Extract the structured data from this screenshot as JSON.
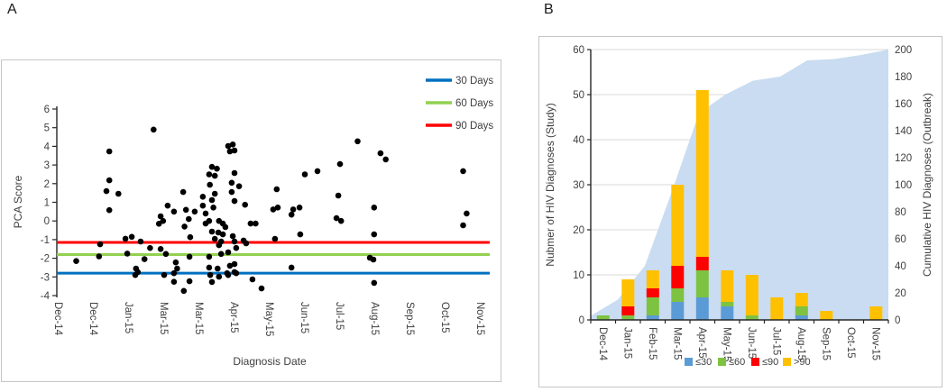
{
  "panels": {
    "a": {
      "letter": "A"
    },
    "b": {
      "letter": "B"
    }
  },
  "chart_data": [
    {
      "panel": "A",
      "type": "scatter",
      "xlabel": "Diagnosis Date",
      "ylabel": "PCA Score",
      "x_tick_labels": [
        "Dec-14",
        "Dec-14",
        "Jan-15",
        "Mar-15",
        "Mar-15",
        "Apr-15",
        "May-15",
        "Jun-15",
        "Jul-15",
        "Aug-15",
        "Sep-15",
        "Oct-15",
        "Nov-15"
      ],
      "y_ticks": [
        6,
        5,
        4,
        3,
        2,
        1,
        0,
        -1,
        -2,
        -3,
        -4
      ],
      "ylim": [
        -4,
        6
      ],
      "marker_color": "#000000",
      "grid": false,
      "legend_position": "top-right",
      "reference_lines": [
        {
          "label": "30 Days",
          "y": -2.8,
          "color": "#0070C0"
        },
        {
          "label": "60 Days",
          "y": -1.8,
          "color": "#92D050"
        },
        {
          "label": "90 Days",
          "y": -1.15,
          "color": "#FF0000"
        }
      ],
      "points": [
        [
          0.5,
          -2.15
        ],
        [
          1.15,
          -1.9
        ],
        [
          1.18,
          -1.25
        ],
        [
          1.36,
          1.6
        ],
        [
          1.44,
          3.73
        ],
        [
          1.44,
          2.18
        ],
        [
          1.7,
          1.46
        ],
        [
          1.44,
          0.58
        ],
        [
          1.9,
          -0.95
        ],
        [
          2.08,
          -0.85
        ],
        [
          2.33,
          -1.1
        ],
        [
          1.95,
          -1.75
        ],
        [
          2.44,
          -2.05
        ],
        [
          2.2,
          -2.55
        ],
        [
          2.25,
          -2.74
        ],
        [
          2.18,
          -2.9
        ],
        [
          2.7,
          4.9
        ],
        [
          2.85,
          -0.15
        ],
        [
          2.9,
          0.25
        ],
        [
          2.97,
          0.0
        ],
        [
          3.1,
          0.82
        ],
        [
          3.28,
          0.5
        ],
        [
          3.54,
          1.55
        ],
        [
          3.62,
          0.6
        ],
        [
          3.7,
          0.1
        ],
        [
          3.58,
          -0.3
        ],
        [
          2.6,
          -1.45
        ],
        [
          2.9,
          -1.5
        ],
        [
          3.05,
          -1.77
        ],
        [
          3.33,
          -2.22
        ],
        [
          3.37,
          -2.55
        ],
        [
          3.28,
          -2.8
        ],
        [
          3.28,
          -3.26
        ],
        [
          3.0,
          -2.9
        ],
        [
          3.56,
          -3.75
        ],
        [
          3.72,
          -3.23
        ],
        [
          3.74,
          -0.87
        ],
        [
          3.87,
          0.5
        ],
        [
          3.72,
          -1.92
        ],
        [
          4.1,
          1.3
        ],
        [
          4.1,
          0.82
        ],
        [
          4.18,
          0.4
        ],
        [
          4.36,
          1.12
        ],
        [
          4.4,
          0.72
        ],
        [
          4.36,
          2.9
        ],
        [
          4.5,
          2.8
        ],
        [
          4.28,
          2.5
        ],
        [
          4.44,
          2.42
        ],
        [
          4.3,
          1.94
        ],
        [
          4.44,
          1.46
        ],
        [
          4.56,
          0.0
        ],
        [
          4.67,
          -0.14
        ],
        [
          4.74,
          -0.33
        ],
        [
          4.28,
          0.0
        ],
        [
          4.18,
          -0.14
        ],
        [
          4.36,
          -0.57
        ],
        [
          4.54,
          -0.62
        ],
        [
          4.67,
          -0.72
        ],
        [
          4.44,
          -0.96
        ],
        [
          4.62,
          -1.1
        ],
        [
          4.95,
          -0.81
        ],
        [
          5.0,
          -1.1
        ],
        [
          4.82,
          4.02
        ],
        [
          4.95,
          4.1
        ],
        [
          4.87,
          3.73
        ],
        [
          5.0,
          3.78
        ],
        [
          4.92,
          2.05
        ],
        [
          5.0,
          2.57
        ],
        [
          5.13,
          1.86
        ],
        [
          5.0,
          1.07
        ],
        [
          5.3,
          0.87
        ],
        [
          4.92,
          1.55
        ],
        [
          5.46,
          -0.14
        ],
        [
          5.6,
          -0.14
        ],
        [
          5.26,
          -1.05
        ],
        [
          4.56,
          -1.3
        ],
        [
          5.05,
          -1.45
        ],
        [
          5.33,
          -1.2
        ],
        [
          4.62,
          -1.77
        ],
        [
          4.82,
          -1.68
        ],
        [
          4.28,
          -1.92
        ],
        [
          4.28,
          -2.5
        ],
        [
          4.87,
          -2.4
        ],
        [
          5.0,
          -2.74
        ],
        [
          4.82,
          -2.9
        ],
        [
          4.52,
          -2.55
        ],
        [
          4.36,
          -3.27
        ],
        [
          4.31,
          -2.9
        ],
        [
          4.79,
          -2.8
        ],
        [
          5.0,
          -2.31
        ],
        [
          5.05,
          -2.8
        ],
        [
          4.56,
          -2.99
        ],
        [
          5.51,
          -3.13
        ],
        [
          5.77,
          -3.62
        ],
        [
          6.15,
          -0.96
        ],
        [
          6.2,
          1.7
        ],
        [
          6.23,
          0.72
        ],
        [
          6.1,
          0.62
        ],
        [
          6.67,
          0.62
        ],
        [
          6.85,
          0.72
        ],
        [
          6.62,
          0.34
        ],
        [
          6.62,
          -2.5
        ],
        [
          6.87,
          -0.72
        ],
        [
          7.0,
          2.5
        ],
        [
          7.36,
          2.67
        ],
        [
          8.0,
          3.05
        ],
        [
          7.95,
          1.36
        ],
        [
          7.9,
          0.15
        ],
        [
          8.03,
          0.0
        ],
        [
          8.5,
          4.27
        ],
        [
          8.97,
          0.72
        ],
        [
          8.97,
          -0.72
        ],
        [
          9.15,
          3.63
        ],
        [
          9.3,
          3.3
        ],
        [
          8.85,
          -1.97
        ],
        [
          8.95,
          -2.07
        ],
        [
          8.97,
          -3.32
        ],
        [
          11.5,
          2.67
        ],
        [
          11.6,
          0.4
        ],
        [
          11.5,
          -0.23
        ]
      ]
    },
    {
      "panel": "B",
      "type": "bar-area-combo",
      "categories": [
        "Dec-14",
        "Jan-15",
        "Feb-15",
        "Mar-15",
        "Apr-15",
        "May-15",
        "Jun-15",
        "Jul-15",
        "Aug-15",
        "Sep-15",
        "Oct-15",
        "Nov-15"
      ],
      "ylabel_left": "Nubmer of HIV Diagnoses (Study)",
      "ylabel_right": "Cumulative HIV Diagnoses (Outbreak)",
      "ylim_left": [
        0,
        60
      ],
      "ylim_right": [
        0,
        200
      ],
      "y_ticks_left": [
        0,
        10,
        20,
        30,
        40,
        50,
        60
      ],
      "y_ticks_right": [
        0,
        20,
        40,
        60,
        80,
        100,
        120,
        140,
        160,
        180,
        200
      ],
      "grid": true,
      "legend_position": "bottom",
      "bar_series": [
        {
          "name": "≤30",
          "color": "#5B9BD5",
          "values": [
            0,
            0,
            1,
            4,
            5,
            3,
            0,
            0,
            1,
            0,
            0,
            0
          ]
        },
        {
          "name": "≤60",
          "color": "#7EC241",
          "values": [
            1,
            1,
            4,
            3,
            6,
            1,
            1,
            0,
            2,
            0,
            0,
            0
          ]
        },
        {
          "name": "≤90",
          "color": "#FF0000",
          "values": [
            0,
            2,
            2,
            5,
            3,
            0,
            0,
            0,
            0,
            0,
            0,
            0
          ]
        },
        {
          "name": ">90",
          "color": "#FFC000",
          "values": [
            0,
            6,
            4,
            18,
            37,
            7,
            9,
            5,
            3,
            2,
            0,
            3
          ]
        }
      ],
      "area_series": {
        "name": "Cumulative HIV Diagnoses (Outbreak)",
        "color": "#C9DCF1",
        "values": [
          3,
          15,
          40,
          95,
          153,
          167,
          177,
          180,
          192,
          193,
          196,
          200
        ]
      }
    }
  ]
}
